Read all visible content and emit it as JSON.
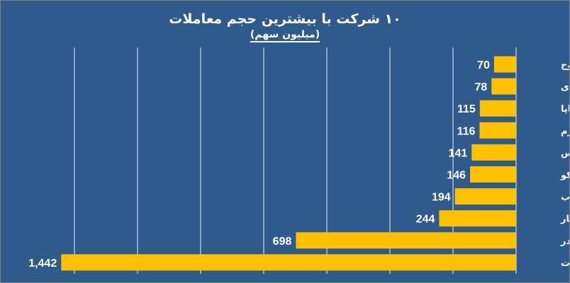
{
  "chart_data": {
    "type": "bar",
    "orientation": "horizontal",
    "title": "۱۰ شرکت با بیشترین حجم معاملات",
    "subtitle": "(میلیون سهم)",
    "categories": [
      "ونیروح",
      "دی",
      "خساپا",
      "وخارزم",
      "خپارس",
      "تپکو",
      "ذوب",
      "وپاسار",
      "وبصادر",
      "وتجارت"
    ],
    "values": [
      70,
      78,
      115,
      116,
      141,
      146,
      194,
      244,
      698,
      1442
    ],
    "value_labels": [
      "70",
      "78",
      "115",
      "116",
      "141",
      "146",
      "194",
      "244",
      "698",
      "1,442"
    ],
    "xlim": [
      0,
      1450
    ],
    "grid": true,
    "colors": {
      "bar": "#ffc000",
      "background": "#2f5b8c",
      "text": "#ffffff",
      "grid": "#ffffff"
    }
  }
}
